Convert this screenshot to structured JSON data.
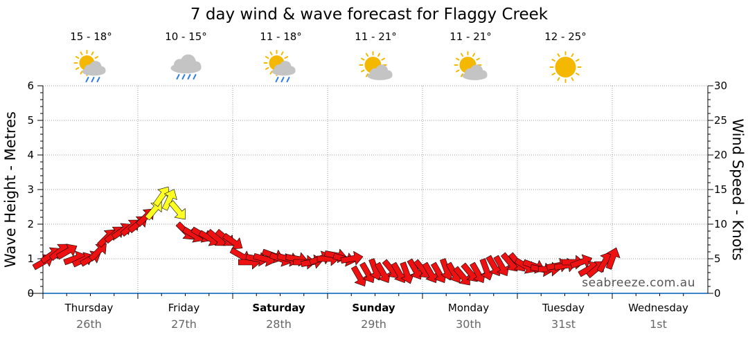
{
  "title": "7 day wind & wave forecast for Flaggy Creek",
  "watermark": "seabreeze.com.au",
  "colors": {
    "strong_wind": "#ee1111",
    "moderate_wind": "#ffff22",
    "sun": "#f5b800",
    "cloud": "#c4c4c4",
    "rain": "#2e7fe0"
  },
  "forecast": [
    {
      "temp": "15 - 18°",
      "icon": "sun-cloud-rain-icon"
    },
    {
      "temp": "10 - 15°",
      "icon": "rain-cloud-icon"
    },
    {
      "temp": "11 - 18°",
      "icon": "sun-cloud-rain-icon"
    },
    {
      "temp": "11 - 21°",
      "icon": "partly-cloudy-icon"
    },
    {
      "temp": "11 - 21°",
      "icon": "partly-cloudy-icon"
    },
    {
      "temp": "12 - 25°",
      "icon": "sun-icon"
    }
  ],
  "chart_data": {
    "type": "line",
    "title": "7 day wind & wave forecast for Flaggy Creek",
    "y_left_label": "Wave Height - Metres",
    "y_right_label": "Wind Speed - Knots",
    "y_left_range": [
      0,
      6
    ],
    "y_left_ticks": [
      "0",
      "1",
      "2",
      "3",
      "4",
      "5",
      "6"
    ],
    "y_right_range": [
      0,
      30
    ],
    "y_right_ticks": [
      "0",
      "5",
      "10",
      "15",
      "20",
      "25",
      "30"
    ],
    "grid": true,
    "days": [
      {
        "name": "Thursday",
        "date": "26th",
        "bold": false
      },
      {
        "name": "Friday",
        "date": "27th",
        "bold": false
      },
      {
        "name": "Saturday",
        "date": "28th",
        "bold": true
      },
      {
        "name": "Sunday",
        "date": "29th",
        "bold": true
      },
      {
        "name": "Monday",
        "date": "30th",
        "bold": false
      },
      {
        "name": "Tuesday",
        "date": "31st",
        "bold": false
      },
      {
        "name": "Wednesday",
        "date": "1st",
        "bold": false
      }
    ],
    "series": [
      {
        "name": "Wind Speed",
        "unit": "knots",
        "x_day": [
          0.0,
          0.08,
          0.17,
          0.25,
          0.33,
          0.42,
          0.5,
          0.58,
          0.67,
          0.75,
          0.83,
          0.92,
          1.0,
          1.08,
          1.17,
          1.25,
          1.33,
          1.42,
          1.5,
          1.58,
          1.67,
          1.75,
          1.83,
          1.92,
          2.0,
          2.08,
          2.17,
          2.25,
          2.33,
          2.42,
          2.5,
          2.58,
          2.67,
          2.75,
          2.83,
          2.92,
          3.0,
          3.08,
          3.17,
          3.25,
          3.33,
          3.42,
          3.5,
          3.58,
          3.67,
          3.75,
          3.83,
          3.92,
          4.0,
          4.08,
          4.17,
          4.25,
          4.33,
          4.42,
          4.5,
          4.58,
          4.67,
          4.75,
          4.83,
          4.92,
          5.0,
          5.08,
          5.17,
          5.25,
          5.33,
          5.42,
          5.5,
          5.58,
          5.67,
          5.75,
          5.83,
          5.92,
          6.0
        ],
        "values": [
          4.5,
          5.5,
          6.0,
          6.0,
          5.0,
          4.8,
          5.0,
          6.0,
          8.0,
          8.5,
          9.0,
          9.5,
          10.0,
          11.0,
          12.0,
          14.0,
          13.5,
          12.0,
          9.0,
          8.5,
          8.5,
          8.0,
          8.0,
          8.0,
          7.5,
          5.5,
          4.5,
          5.0,
          5.0,
          5.5,
          5.0,
          5.0,
          5.0,
          4.5,
          4.5,
          5.0,
          5.0,
          5.5,
          5.0,
          5.0,
          2.5,
          3.0,
          3.5,
          3.0,
          3.5,
          3.0,
          3.0,
          3.5,
          3.5,
          3.0,
          3.0,
          3.5,
          3.0,
          2.5,
          3.0,
          3.0,
          3.5,
          4.0,
          4.0,
          4.5,
          4.5,
          4.0,
          4.0,
          3.5,
          3.5,
          4.0,
          4.0,
          4.5,
          4.5,
          3.5,
          3.5,
          4.5,
          5.0
        ],
        "direction_deg": [
          240,
          235,
          230,
          240,
          250,
          245,
          240,
          225,
          225,
          230,
          235,
          230,
          230,
          225,
          220,
          215,
          205,
          320,
          315,
          300,
          300,
          300,
          310,
          310,
          305,
          300,
          270,
          280,
          285,
          290,
          290,
          285,
          280,
          270,
          260,
          250,
          270,
          280,
          285,
          260,
          330,
          330,
          340,
          330,
          320,
          330,
          340,
          330,
          320,
          330,
          330,
          340,
          330,
          320,
          320,
          330,
          340,
          330,
          330,
          320,
          320,
          300,
          290,
          280,
          270,
          260,
          260,
          270,
          250,
          240,
          230,
          210,
          200
        ]
      }
    ]
  }
}
